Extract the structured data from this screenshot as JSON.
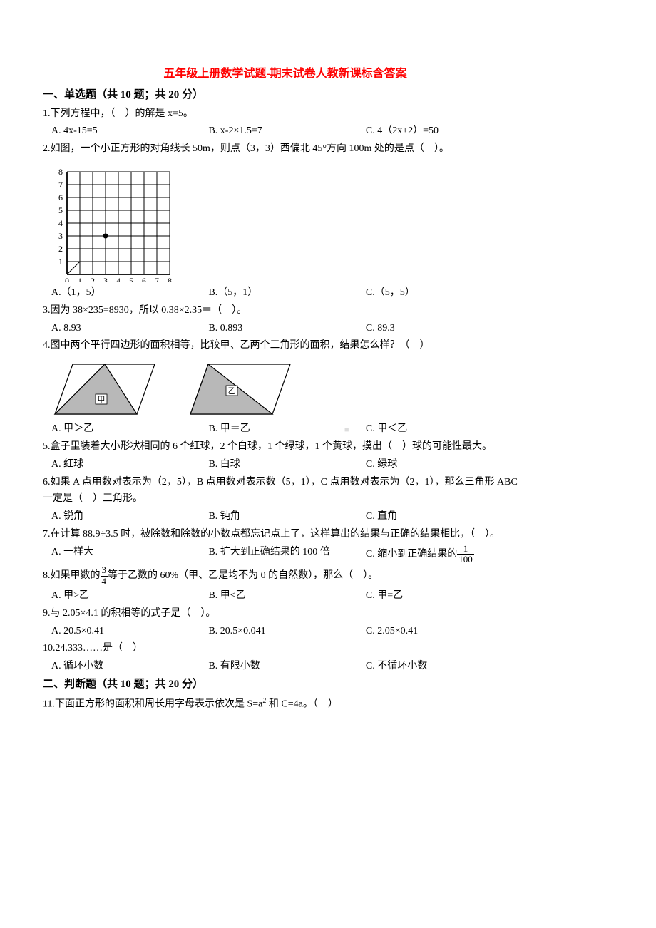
{
  "title": "五年级上册数学试题-期末试卷人教新课标含答案",
  "section1": {
    "header": "一、单选题（共 10 题；共 20 分）"
  },
  "q1": {
    "text": "1.下列方程中，（　）的解是 x=5。",
    "a": "A. 4x-15=5",
    "b": "B. x-2×1.5=7",
    "c": "C. 4（2x+2）=50"
  },
  "q2": {
    "text": "2.如图，一个小正方形的对角线长 50m，则点（3，3）西偏北 45°方向 100m 处的是点（　）。",
    "a": "A.（1，5）",
    "b": "B.（5，1）",
    "c": "C.（5，5）",
    "grid": {
      "cols": 8,
      "rows": 8,
      "xlabels": [
        "0",
        "1",
        "2",
        "3",
        "4",
        "5",
        "6",
        "7",
        "8"
      ],
      "ylabels": [
        "1",
        "2",
        "3",
        "4",
        "5",
        "6",
        "7",
        "8"
      ],
      "point": [
        3,
        3
      ],
      "stroke": "#000000",
      "cell": 18
    }
  },
  "q3": {
    "text": "3.因为 38×235=8930，所以 0.38×2.35＝（　）。",
    "a": "A. 8.93",
    "b": "B. 0.893",
    "c": "C. 89.3"
  },
  "q4": {
    "text": "4.图中两个平行四边形的面积相等，比较甲、乙两个三角形的面积，结果怎么样？（　）",
    "a": "A. 甲＞乙",
    "b": "B. 甲＝乙",
    "c": "C. 甲＜乙",
    "labels": {
      "jia": "甲",
      "yi": "乙"
    },
    "fill": "#b8b8b8",
    "stroke": "#000000"
  },
  "q5": {
    "text": "5.盒子里装着大小形状相同的 6 个红球，2 个白球，1 个绿球，1 个黄球，摸出（　）球的可能性最大。",
    "a": "A. 红球",
    "b": "B. 白球",
    "c": "C. 绿球"
  },
  "q6": {
    "text": "6.如果 A 点用数对表示为（2，5），B 点用数对表示数（5，1），C 点用数对表示为（2，1），那么三角形 ABC 一定是（　）三角形。",
    "a": "A. 锐角",
    "b": "B. 钝角",
    "c": "C. 直角"
  },
  "q7": {
    "text": "7.在计算 88.9÷3.5 时，被除数和除数的小数点都忘记点上了，这样算出的结果与正确的结果相比，（　）。",
    "a": "A. 一样大",
    "b": "B. 扩大到正确结果的 100 倍",
    "c_prefix": "C. 缩小到正确结果的",
    "c_frac": {
      "num": "1",
      "den": "100"
    }
  },
  "q8": {
    "prefix": "8.如果甲数的",
    "frac": {
      "num": "3",
      "den": "4"
    },
    "suffix": "等于乙数的 60%（甲、乙是均不为 0 的自然数），那么（　）。",
    "a": "A. 甲>乙",
    "b": "B. 甲<乙",
    "c": "C. 甲=乙"
  },
  "q9": {
    "text": "9.与 2.05×4.1 的积相等的式子是（　）。",
    "a": "A. 20.5×0.41",
    "b": "B. 20.5×0.041",
    "c": "C. 2.05×0.41"
  },
  "q10": {
    "text": "10.24.333……是（　）",
    "a": "A. 循环小数",
    "b": "B. 有限小数",
    "c": "C. 不循环小数"
  },
  "section2": {
    "header": "二、判断题（共 10 题；共 20 分）"
  },
  "q11": {
    "prefix": "11.下面正方形的面积和周长用字母表示依次是 S=a",
    "sup": "2",
    "suffix": " 和 C=4a。（　）"
  },
  "watermark": "■"
}
